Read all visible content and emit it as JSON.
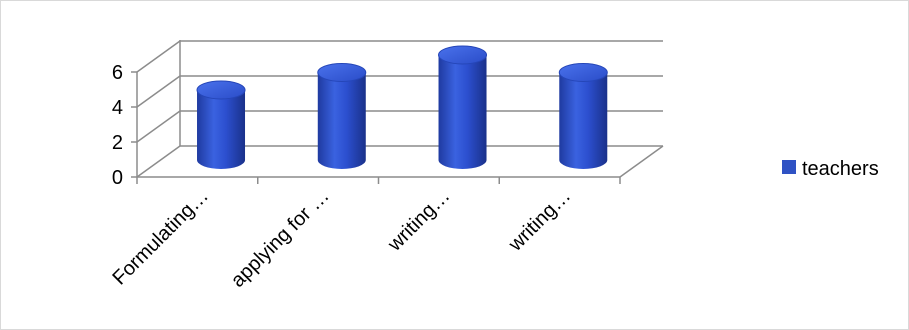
{
  "chart_data": {
    "type": "bar",
    "style": "3d-cylinder",
    "categories": [
      "Formulating…",
      "applying for …",
      "writing…",
      "writing…"
    ],
    "series": [
      {
        "name": "teachers",
        "values": [
          4,
          5,
          6,
          5
        ],
        "color": "#2f52c4"
      }
    ],
    "ylim": [
      0,
      6
    ],
    "yticks": [
      "0",
      "2",
      "4",
      "6"
    ],
    "grid": true,
    "legend_position": "right"
  }
}
